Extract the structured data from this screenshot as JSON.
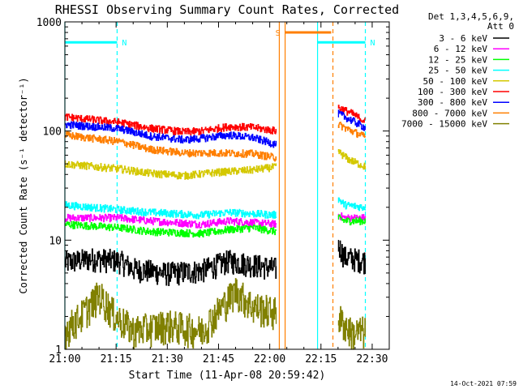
{
  "chart_data": {
    "type": "line",
    "title": "RHESSI Observing Summary Count Rates, Corrected",
    "xlabel": "Start Time (11-Apr-08 20:59:42)",
    "ylabel": "Corrected Count Rate (s⁻¹ detector⁻¹)",
    "yscale": "log",
    "ylim": [
      1,
      1000
    ],
    "xlim_minutes": [
      0,
      95
    ],
    "x_ticks": [
      {
        "t": 0,
        "label": "21:00"
      },
      {
        "t": 15,
        "label": "21:15"
      },
      {
        "t": 30,
        "label": "21:30"
      },
      {
        "t": 45,
        "label": "21:45"
      },
      {
        "t": 60,
        "label": "22:00"
      },
      {
        "t": 75,
        "label": "22:15"
      },
      {
        "t": 90,
        "label": "22:30"
      }
    ],
    "y_ticks": [
      {
        "v": 1,
        "label": "1"
      },
      {
        "v": 10,
        "label": "10"
      },
      {
        "v": 100,
        "label": "100"
      },
      {
        "v": 1000,
        "label": "1000"
      }
    ],
    "legend_header": [
      "Det 1,3,4,5,6,9,",
      "Att 0"
    ],
    "series": [
      {
        "name": "3 - 6 keV",
        "color": "#000000",
        "seg1": [
          [
            0,
            6.3
          ],
          [
            8,
            6.8
          ],
          [
            16,
            6.5
          ],
          [
            20,
            5.5
          ],
          [
            30,
            5.0
          ],
          [
            40,
            5.3
          ],
          [
            48,
            6.5
          ],
          [
            55,
            6.0
          ],
          [
            62,
            5.5
          ]
        ],
        "seg2": [
          [
            80,
            9.0
          ],
          [
            82,
            7.0
          ],
          [
            88,
            6.5
          ]
        ]
      },
      {
        "name": "6 - 12 keV",
        "color": "#ff00ff",
        "seg1": [
          [
            0,
            16
          ],
          [
            16,
            16
          ],
          [
            25,
            15
          ],
          [
            40,
            14
          ],
          [
            48,
            15
          ],
          [
            55,
            14.5
          ],
          [
            62,
            14
          ]
        ],
        "seg2": [
          [
            80,
            17
          ],
          [
            82,
            16
          ],
          [
            88,
            16
          ]
        ]
      },
      {
        "name": "12 - 25 keV",
        "color": "#00ff00",
        "seg1": [
          [
            0,
            14
          ],
          [
            16,
            13
          ],
          [
            25,
            12
          ],
          [
            40,
            11.5
          ],
          [
            48,
            12.5
          ],
          [
            55,
            13
          ],
          [
            62,
            12
          ]
        ],
        "seg2": [
          [
            80,
            16
          ],
          [
            82,
            15
          ],
          [
            88,
            15
          ]
        ]
      },
      {
        "name": "25 - 50 keV",
        "color": "#00ffff",
        "seg1": [
          [
            0,
            21
          ],
          [
            16,
            19
          ],
          [
            25,
            18
          ],
          [
            40,
            17
          ],
          [
            48,
            18
          ],
          [
            55,
            17.5
          ],
          [
            62,
            17
          ]
        ],
        "seg2": [
          [
            80,
            24
          ],
          [
            82,
            21
          ],
          [
            88,
            20
          ]
        ]
      },
      {
        "name": "50 - 100 keV",
        "color": "#d4c800",
        "seg1": [
          [
            0,
            50
          ],
          [
            16,
            45
          ],
          [
            25,
            41
          ],
          [
            35,
            39
          ],
          [
            45,
            42
          ],
          [
            55,
            44
          ],
          [
            62,
            47
          ]
        ],
        "seg2": [
          [
            80,
            65
          ],
          [
            83,
            55
          ],
          [
            88,
            47
          ]
        ]
      },
      {
        "name": "100 - 300 keV",
        "color": "#ff0000",
        "seg1": [
          [
            0,
            135
          ],
          [
            16,
            120
          ],
          [
            25,
            106
          ],
          [
            35,
            98
          ],
          [
            40,
            100
          ],
          [
            48,
            110
          ],
          [
            55,
            108
          ],
          [
            62,
            100
          ]
        ],
        "seg2": [
          [
            80,
            165
          ],
          [
            84,
            145
          ],
          [
            88,
            122
          ]
        ]
      },
      {
        "name": "300 - 800 keV",
        "color": "#0000ff",
        "seg1": [
          [
            0,
            115
          ],
          [
            16,
            105
          ],
          [
            25,
            90
          ],
          [
            35,
            83
          ],
          [
            40,
            86
          ],
          [
            48,
            92
          ],
          [
            55,
            87
          ],
          [
            62,
            75
          ]
        ],
        "seg2": [
          [
            80,
            145
          ],
          [
            84,
            125
          ],
          [
            88,
            107
          ]
        ]
      },
      {
        "name": "800 - 7000 keV",
        "color": "#ff7f00",
        "seg1": [
          [
            0,
            92
          ],
          [
            16,
            80
          ],
          [
            25,
            68
          ],
          [
            35,
            63
          ],
          [
            45,
            63
          ],
          [
            55,
            62
          ],
          [
            62,
            57
          ]
        ],
        "seg2": [
          [
            80,
            115
          ],
          [
            84,
            100
          ],
          [
            88,
            88
          ]
        ]
      },
      {
        "name": "7000 - 15000 keV",
        "color": "#808000",
        "seg1": [
          [
            0,
            1.5
          ],
          [
            5,
            2.1
          ],
          [
            10,
            3.2
          ],
          [
            15,
            2.0
          ],
          [
            20,
            1.5
          ],
          [
            30,
            1.7
          ],
          [
            40,
            1.5
          ],
          [
            45,
            2.3
          ],
          [
            50,
            3.5
          ],
          [
            55,
            2.5
          ],
          [
            62,
            2.2
          ]
        ],
        "seg2": [
          [
            80,
            2.0
          ],
          [
            84,
            1.4
          ],
          [
            88,
            1.5
          ]
        ]
      }
    ],
    "flags": [
      {
        "label": "N",
        "color": "#00ffff",
        "x_start": 0,
        "x_end": 15.3,
        "level": 650
      },
      {
        "label": "N",
        "color": "#00ffff",
        "x_start": 74,
        "x_end": 88,
        "level": 650
      },
      {
        "label": "S",
        "color": "#ff7f00",
        "x_start": 64.5,
        "x_end": 78,
        "level": 800
      }
    ],
    "vlines": [
      {
        "t": 0,
        "color": "#00ffff",
        "style": "solid"
      },
      {
        "t": 15.3,
        "color": "#00ffff",
        "style": "dashed"
      },
      {
        "t": 62.8,
        "color": "#ff7f00",
        "style": "solid"
      },
      {
        "t": 64.5,
        "color": "#ff7f00",
        "style": "solid"
      },
      {
        "t": 74,
        "color": "#00ffff",
        "style": "solid"
      },
      {
        "t": 78.5,
        "color": "#ff7f00",
        "style": "dashed"
      },
      {
        "t": 88,
        "color": "#00ffff",
        "style": "dashed"
      }
    ]
  },
  "footer_date": "14-Oct-2021 07:59"
}
